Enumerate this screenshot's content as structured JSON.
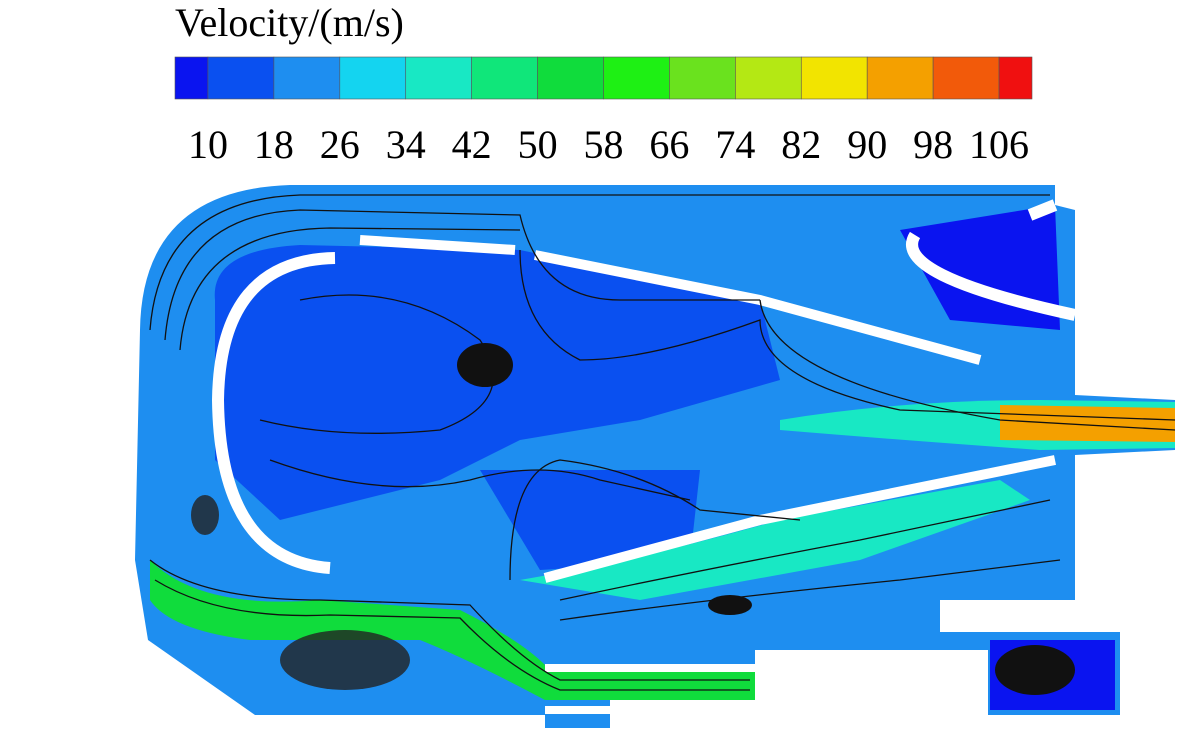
{
  "colorbar": {
    "title": "Velocity/(m/s)",
    "ticks": [
      10,
      18,
      26,
      34,
      42,
      50,
      58,
      66,
      74,
      82,
      90,
      98,
      106
    ],
    "colors": [
      "#0a14f0",
      "#0a50f0",
      "#1e8ef0",
      "#14d4f0",
      "#18e8c4",
      "#10e67a",
      "#10dc3c",
      "#1ef014",
      "#6ae21e",
      "#b4e814",
      "#f2e400",
      "#f4a000",
      "#f25a0a",
      "#f01010"
    ]
  }
}
